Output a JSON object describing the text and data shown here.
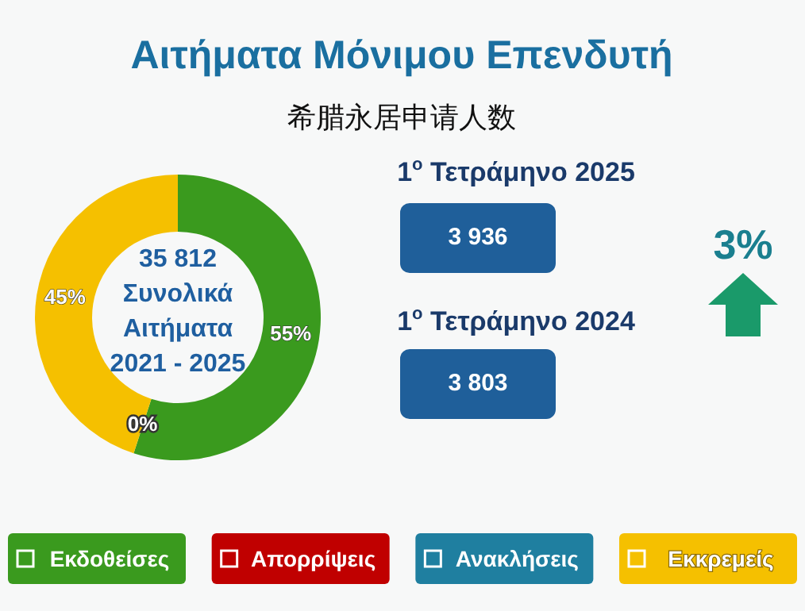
{
  "chart_data": [
    {
      "type": "donut",
      "title": "Αιτήματα Μόνιμου Επενδυτή",
      "subtitle": "希腊永居申请人数",
      "categories": [
        "Εκδοθείσες",
        "Απορρίψεις",
        "Ανακλήσεις",
        "Εκκρεμείς"
      ],
      "values": [
        55,
        0,
        0,
        45
      ],
      "colors": [
        "#3a9a1e",
        "#c00000",
        "#1f7fa0",
        "#f5c000"
      ],
      "value_labels": [
        "55%",
        "0%",
        null,
        "45%"
      ],
      "annotations": [
        "35 812",
        "Συνολικά",
        "Αιτήματα",
        "2021 - 2025"
      ],
      "legend": "bottom"
    },
    {
      "type": "other",
      "annotations": [
        "1$^{o}$ Τετράμηνο 2025",
        "3 936",
        "1$^{o}$ Τετράμηνο 2024",
        "3 803",
        "3%"
      ]
    }
  ]
}
